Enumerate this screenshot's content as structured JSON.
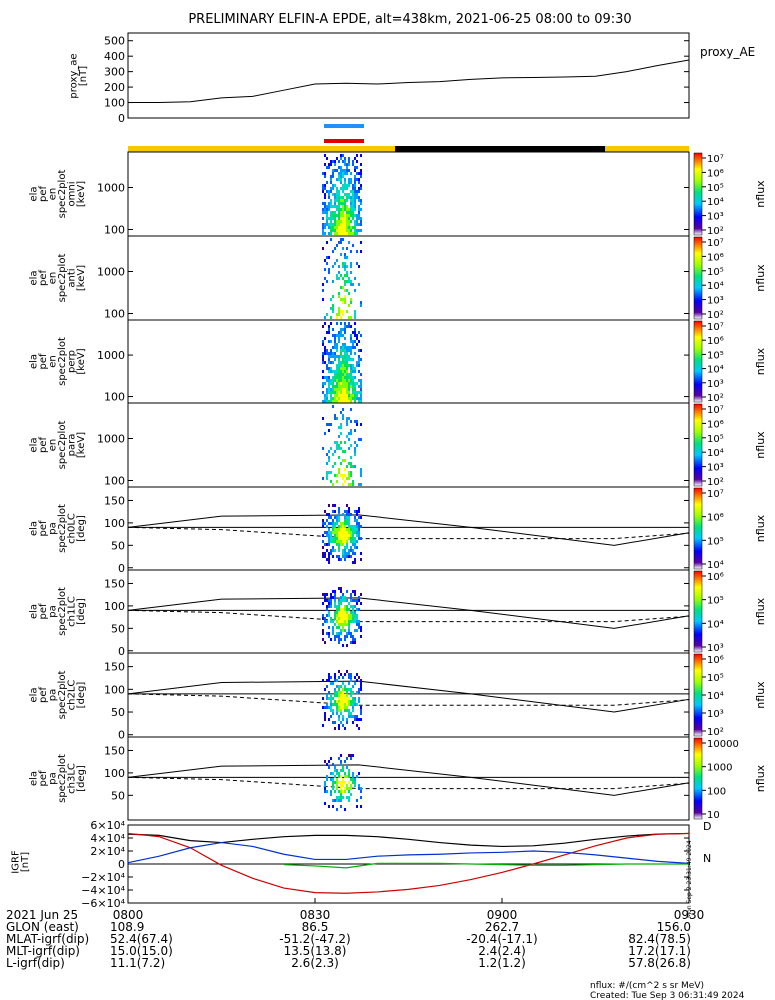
{
  "title": "PRELIMINARY ELFIN-A EPDE, alt=438km, 2021-06-25 08:00 to 09:30",
  "colors": {
    "gold": "#f5c800",
    "black": "#000000",
    "blue_bar": "#1e90ff",
    "red_bar": "#dd0000",
    "line_black": "#000000",
    "line_red": "#d00000",
    "line_blue": "#0030d0",
    "line_green": "#00b000"
  },
  "chart_data": [
    {
      "id": "proxy_ae",
      "type": "line",
      "ylabel": [
        "proxy_ae",
        "[nT]"
      ],
      "ylim": [
        0,
        550
      ],
      "yticks": [
        0,
        100,
        200,
        300,
        400,
        500
      ],
      "legend": "proxy_AE",
      "x": [
        0,
        5,
        10,
        15,
        20,
        25,
        30,
        35,
        40,
        45,
        50,
        55,
        60,
        65,
        70,
        75,
        80,
        85,
        90
      ],
      "values": [
        100,
        100,
        105,
        130,
        140,
        180,
        220,
        225,
        220,
        230,
        235,
        250,
        260,
        262,
        265,
        270,
        300,
        340,
        375
      ]
    },
    {
      "id": "spectrograms_energy",
      "type": "heatmap",
      "panels": [
        {
          "ylabel": [
            "ela",
            "pef",
            "en",
            "spec2plot",
            "omni",
            "[keV]"
          ],
          "yticks": [
            100,
            1000
          ],
          "cbar_ticks": [
            "10⁷",
            "10⁶",
            "10⁵",
            "10⁴",
            "10³",
            "10²"
          ],
          "cbar_label": "nflux"
        },
        {
          "ylabel": [
            "ela",
            "pef",
            "en",
            "spec2plot",
            "anti",
            "[keV]"
          ],
          "yticks": [
            100,
            1000
          ],
          "cbar_ticks": [
            "10⁷",
            "10⁶",
            "10⁵",
            "10⁴",
            "10³",
            "10²"
          ],
          "cbar_label": "nflux"
        },
        {
          "ylabel": [
            "ela",
            "pef",
            "en",
            "spec2plot",
            "perp",
            "[keV]"
          ],
          "yticks": [
            100,
            1000
          ],
          "cbar_ticks": [
            "10⁷",
            "10⁶",
            "10⁵",
            "10⁴",
            "10³",
            "10²"
          ],
          "cbar_label": "nflux"
        },
        {
          "ylabel": [
            "ela",
            "pef",
            "en",
            "spec2plot",
            "para",
            "[keV]"
          ],
          "yticks": [
            100,
            1000
          ],
          "cbar_ticks": [
            "10⁷",
            "10⁶",
            "10⁵",
            "10⁴",
            "10³",
            "10²"
          ],
          "cbar_label": "nflux"
        }
      ]
    },
    {
      "id": "spectrograms_pitch",
      "type": "heatmap",
      "panels": [
        {
          "ylabel": [
            "ela",
            "pef",
            "pa",
            "spec2plot",
            "ch0LC",
            "[deg]"
          ],
          "yticks": [
            0,
            50,
            100,
            150
          ],
          "cbar_ticks": [
            "10⁷",
            "10⁶",
            "10⁵",
            "10⁴"
          ],
          "cbar_label": "nflux"
        },
        {
          "ylabel": [
            "ela",
            "pef",
            "pa",
            "spec2plot",
            "ch1LC",
            "[deg]"
          ],
          "yticks": [
            0,
            50,
            100,
            150
          ],
          "cbar_ticks": [
            "10⁶",
            "10⁵",
            "10⁴",
            "10³"
          ],
          "cbar_label": "nflux"
        },
        {
          "ylabel": [
            "ela",
            "pef",
            "pa",
            "spec2plot",
            "ch2LC",
            "[deg]"
          ],
          "yticks": [
            0,
            50,
            100,
            150
          ],
          "cbar_ticks": [
            "10⁶",
            "10⁵",
            "10⁴",
            "10³",
            "10²"
          ],
          "cbar_label": "nflux"
        },
        {
          "ylabel": [
            "ela",
            "pef",
            "pa",
            "spec2plot",
            "ch3LC",
            "[deg]"
          ],
          "yticks": [
            50,
            100,
            150
          ],
          "cbar_ticks": [
            "10000",
            "1000",
            "100",
            "10"
          ],
          "cbar_label": "nflux"
        }
      ],
      "loss_cone_solid": {
        "x": [
          0,
          15,
          37,
          55,
          78,
          90
        ],
        "values": [
          90,
          115,
          118,
          90,
          50,
          78
        ]
      },
      "loss_cone_dashed": {
        "x": [
          0,
          15,
          37,
          55,
          78,
          90
        ],
        "values": [
          90,
          85,
          65,
          65,
          65,
          77
        ]
      }
    },
    {
      "id": "igrf",
      "type": "line",
      "ylabel": [
        "IGRF",
        "[nT]"
      ],
      "yticks": [
        "6×10⁴",
        "4×10⁴",
        "2×10⁴",
        "0",
        "−2×10⁴",
        "−4×10⁴",
        "−6×10⁴"
      ],
      "ylim": [
        -60000,
        60000
      ],
      "side_labels": [
        "D",
        "N"
      ],
      "x": [
        0,
        5,
        10,
        15,
        20,
        25,
        30,
        35,
        40,
        45,
        50,
        55,
        60,
        65,
        70,
        75,
        80,
        85,
        90
      ],
      "series": [
        {
          "color": "black",
          "values": [
            46000,
            44000,
            36000,
            33000,
            38000,
            42000,
            44000,
            44000,
            42000,
            38000,
            33000,
            29000,
            27000,
            28000,
            32000,
            38000,
            43000,
            46000,
            47000
          ]
        },
        {
          "color": "red",
          "values": [
            47000,
            42000,
            25000,
            -2000,
            -22000,
            -37000,
            -44000,
            -45000,
            -43000,
            -39000,
            -33000,
            -24000,
            -13000,
            0,
            14000,
            28000,
            40000,
            46000,
            47000
          ]
        },
        {
          "color": "blue",
          "values": [
            2000,
            12000,
            25000,
            33000,
            27000,
            15000,
            7000,
            7000,
            12000,
            14000,
            15000,
            17000,
            18000,
            20000,
            18000,
            14000,
            9000,
            4000,
            1000
          ]
        },
        {
          "color": "green",
          "values": [
            null,
            null,
            null,
            null,
            null,
            -1000,
            -3000,
            -6000,
            1000,
            1000,
            1000,
            0,
            -1000,
            -2000,
            -2000,
            -1000,
            0,
            0,
            0
          ]
        }
      ]
    }
  ],
  "x_axis": {
    "ticks": [
      "0800",
      "0830",
      "0900",
      "0930"
    ],
    "row_labels": [
      "2021 Jun 25",
      "GLON (east)",
      "MLAT-igrf(dip)",
      "MLT-igrf(dip)",
      "L-igrf(dip)"
    ],
    "rows": [
      [
        "",
        "",
        "",
        ""
      ],
      [
        "108.9",
        "86.5",
        "262.7",
        "156.0"
      ],
      [
        "52.4(67.4)",
        "-51.2(-47.2)",
        "-20.4(-17.1)",
        "82.4(78.5)"
      ],
      [
        "15.0(15.0)",
        "13.5(13.8)",
        "2.4(2.4)",
        "17.2(17.1)"
      ],
      [
        "11.1(7.2)",
        "2.6(2.3)",
        "1.2(1.2)",
        "57.8(26.8)"
      ]
    ]
  },
  "side_stamp": "Mon Sep  2 23:31:49 2024",
  "footer": {
    "units": "nflux: #/(cm^2 s sr MeV)",
    "created": "Created: Tue Sep  3 06:31:49 2024"
  }
}
